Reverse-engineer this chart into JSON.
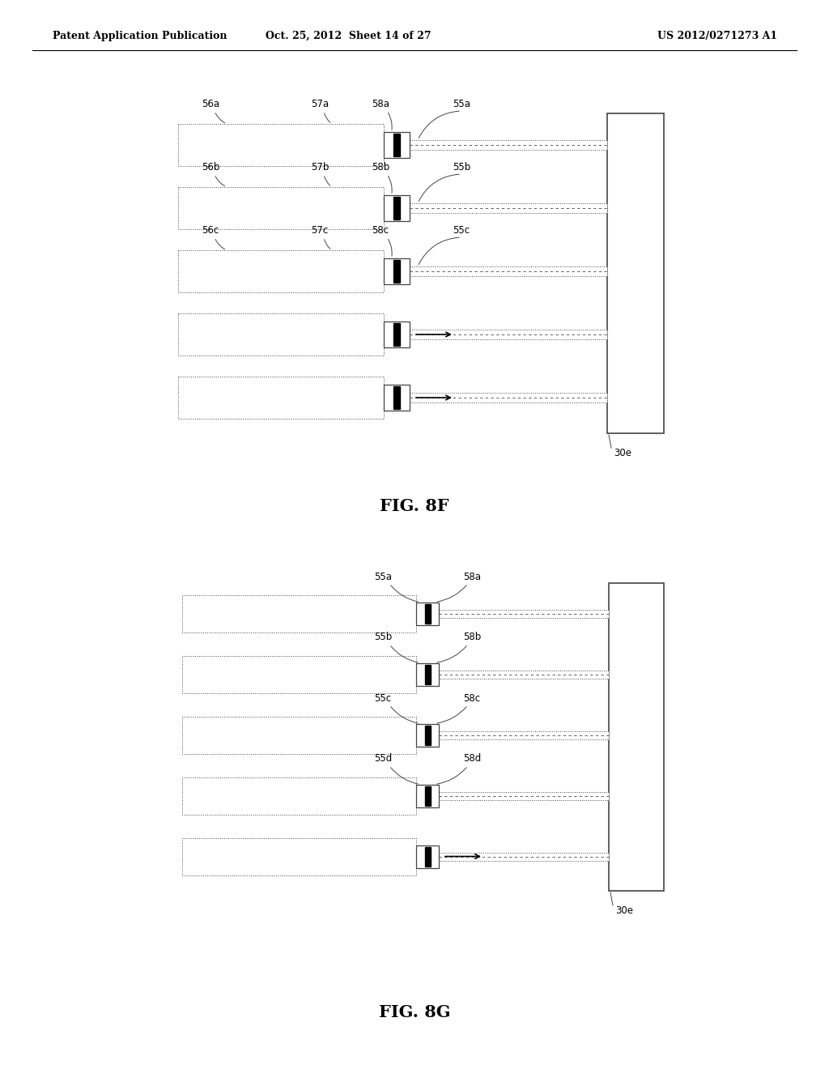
{
  "header_left": "Patent Application Publication",
  "header_mid": "Oct. 25, 2012  Sheet 14 of 27",
  "header_right": "US 2012/0271273 A1",
  "fig8f_label": "FIG. 8F",
  "fig8g_label": "FIG. 8G",
  "bg_color": "#ffffff",
  "line_color": "#555555",
  "dark_color": "#111111",
  "fig8f_rows": [
    {
      "l1": "56a",
      "l2": "57a",
      "l3": "58a",
      "l4": "55a",
      "arrow": false
    },
    {
      "l1": "56b",
      "l2": "57b",
      "l3": "58b",
      "l4": "55b",
      "arrow": false
    },
    {
      "l1": "56c",
      "l2": "57c",
      "l3": "58c",
      "l4": "55c",
      "arrow": false
    },
    {
      "l1": "",
      "l2": "",
      "l3": "",
      "l4": "",
      "arrow": true
    },
    {
      "l1": "",
      "l2": "",
      "l3": "",
      "l4": "",
      "arrow": true
    }
  ],
  "fig8g_rows": [
    {
      "l1": "55a",
      "l2": "58a",
      "arrow": false
    },
    {
      "l1": "55b",
      "l2": "58b",
      "arrow": false
    },
    {
      "l1": "55c",
      "l2": "58c",
      "arrow": false
    },
    {
      "l1": "55d",
      "l2": "58d",
      "arrow": false
    },
    {
      "l1": "",
      "l2": "",
      "arrow": true
    }
  ]
}
